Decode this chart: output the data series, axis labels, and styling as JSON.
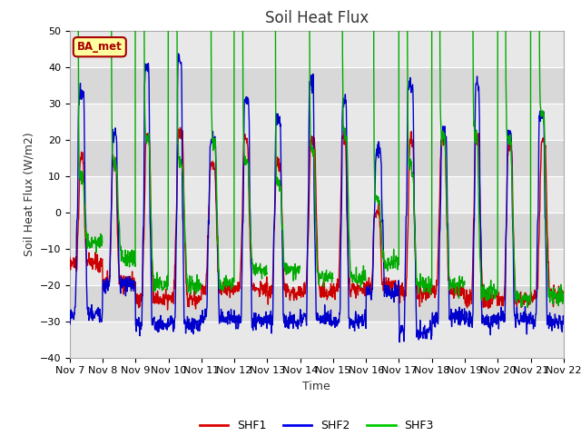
{
  "title": "Soil Heat Flux",
  "xlabel": "Time",
  "ylabel": "Soil Heat Flux (W/m2)",
  "ylim": [
    -40,
    50
  ],
  "xlim": [
    0,
    15
  ],
  "x_tick_labels": [
    "Nov 7",
    "Nov 8",
    "Nov 9",
    "Nov 10",
    "Nov 11",
    "Nov 12",
    "Nov 13",
    "Nov 14",
    "Nov 15",
    "Nov 16",
    "Nov 17",
    "Nov 18",
    "Nov 19",
    "Nov 20",
    "Nov 21",
    "Nov 22"
  ],
  "legend_labels": [
    "SHF1",
    "SHF2",
    "SHF3"
  ],
  "line_colors": [
    "#cc0000",
    "#0000cc",
    "#00aa00"
  ],
  "legend_colors": [
    "#dd0000",
    "#0000ee",
    "#00cc00"
  ],
  "annotation_text": "BA_met",
  "annotation_bg": "#ffffa0",
  "annotation_border": "#aa0000",
  "band_colors": [
    "#e8e8e8",
    "#d8d8d8"
  ],
  "grid_color": "#ffffff",
  "title_fontsize": 12,
  "label_fontsize": 9,
  "tick_fontsize": 8,
  "yticks": [
    -40,
    -30,
    -20,
    -10,
    0,
    10,
    20,
    30,
    40,
    50
  ],
  "n_days": 15,
  "n_per_day": 96
}
